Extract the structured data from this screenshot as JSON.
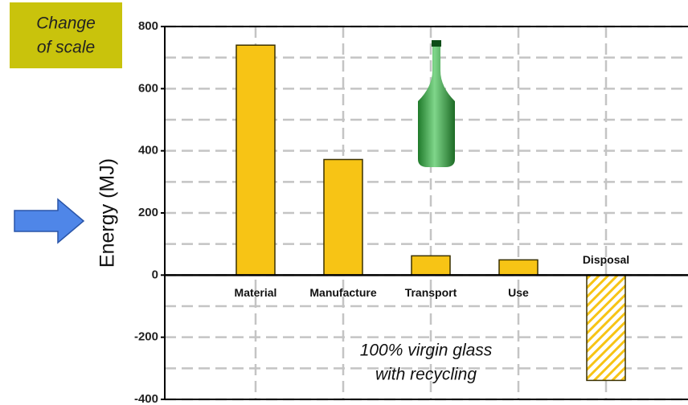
{
  "chart_data": {
    "type": "bar",
    "ylabel": "Energy (MJ)",
    "categories": [
      "Material",
      "Manufacture",
      "Transport",
      "Use",
      "Disposal"
    ],
    "values": [
      740,
      372,
      62,
      49,
      -339
    ],
    "hatch": [
      false,
      false,
      false,
      false,
      true
    ],
    "color": "#f7c415",
    "ylim": [
      -400,
      800
    ],
    "yticks": [
      -400,
      -200,
      0,
      200,
      400,
      600,
      800
    ],
    "grid": true,
    "badge": [
      "Change",
      "of scale"
    ],
    "annotation": [
      "100% virgin glass",
      "with recycling"
    ]
  }
}
